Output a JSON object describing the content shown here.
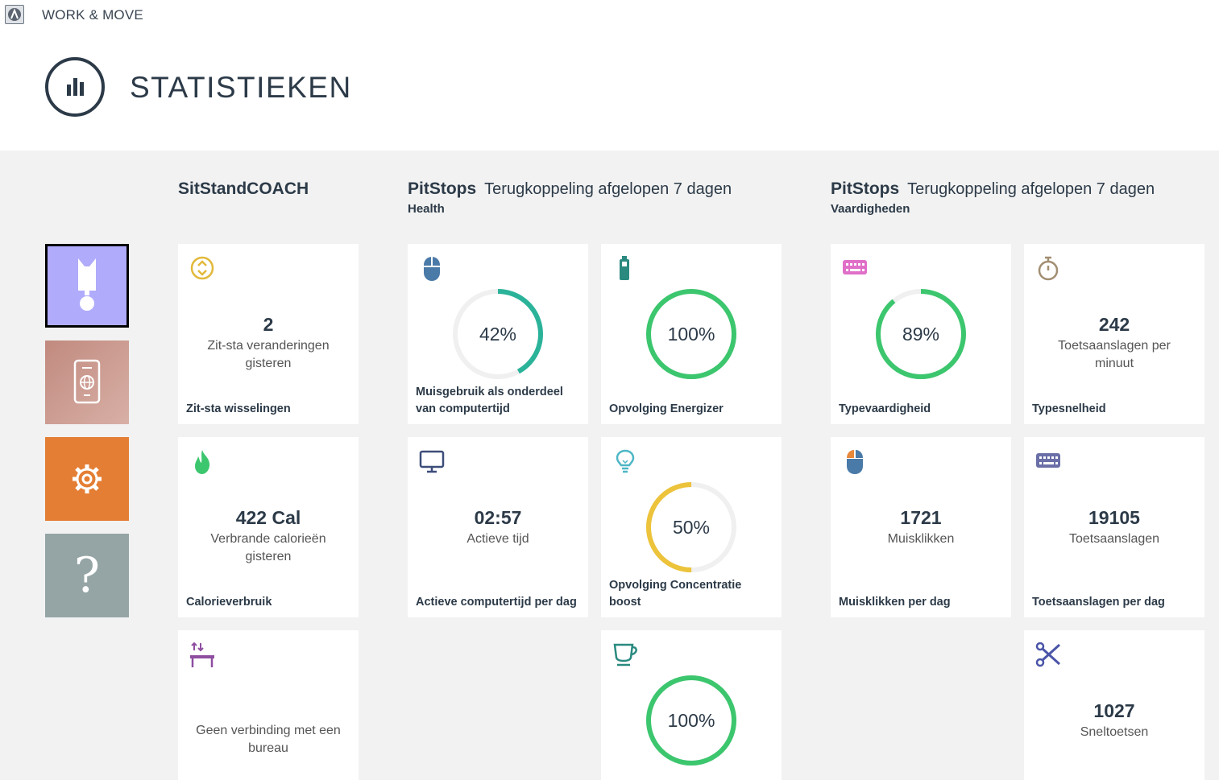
{
  "app": {
    "title": "WORK & MOVE"
  },
  "header": {
    "title": "STATISTIEKEN"
  },
  "colors": {
    "nav_active": "#b0abfb",
    "nav_device": "#c9968b",
    "nav_settings": "#e47e34",
    "nav_help": "#95a5a6",
    "ring_green": "#3cc66e",
    "ring_teal": "#2bb39a",
    "ring_yellow": "#ecc33a"
  },
  "nav": {
    "help_label": "?"
  },
  "sections": {
    "sitstand": {
      "title": "SitStandCOACH"
    },
    "health": {
      "title": "PitStops",
      "subtitle": "Terugkoppeling afgelopen 7 dagen",
      "tag": "Health"
    },
    "skills": {
      "title": "PitStops",
      "subtitle": "Terugkoppeling afgelopen 7 dagen",
      "tag": "Vaardigheden"
    }
  },
  "tiles": {
    "sitstand_changes": {
      "icon": "updown-circle-icon",
      "value": "2",
      "desc": "Zit-sta veranderingen gisteren",
      "label": "Zit-sta wisselingen"
    },
    "calories": {
      "icon": "flame-icon",
      "value": "422 Cal",
      "desc": "Verbrande calorieën gisteren",
      "label": "Calorieverbruik"
    },
    "desk": {
      "icon": "desk-icon",
      "message": "Geen verbinding met een bureau"
    },
    "mouse_usage": {
      "icon": "mouse-icon",
      "percent": 42,
      "text": "42%",
      "label": "Muisgebruik als onderdeel van computertijd"
    },
    "active_time": {
      "icon": "monitor-icon",
      "value": "02:57",
      "desc": "Actieve tijd",
      "label": "Actieve computertijd per dag"
    },
    "energizer": {
      "icon": "battery-icon",
      "percent": 100,
      "text": "100%",
      "label": "Opvolging Energizer"
    },
    "concentration": {
      "icon": "lightbulb-icon",
      "percent": 50,
      "text": "50%",
      "label": "Opvolging Concentratie boost"
    },
    "coffee": {
      "icon": "cup-icon",
      "percent": 100,
      "text": "100%"
    },
    "typing_skill": {
      "icon": "keyboard-pink-icon",
      "percent": 89,
      "text": "89%",
      "label": "Typevaardigheid"
    },
    "mouse_clicks": {
      "icon": "mouse-split-icon",
      "value": "1721",
      "desc": "Muisklikken",
      "label": "Muisklikken per dag"
    },
    "typing_speed": {
      "icon": "stopwatch-icon",
      "value": "242",
      "desc": "Toetsaanslagen per minuut",
      "label": "Typesnelheid"
    },
    "keystrokes": {
      "icon": "keyboard-icon",
      "value": "19105",
      "desc": "Toetsaanslagen",
      "label": "Toetsaanslagen per dag"
    },
    "shortcuts": {
      "icon": "scissors-icon",
      "value": "1027",
      "desc": "Sneltoetsen"
    }
  }
}
